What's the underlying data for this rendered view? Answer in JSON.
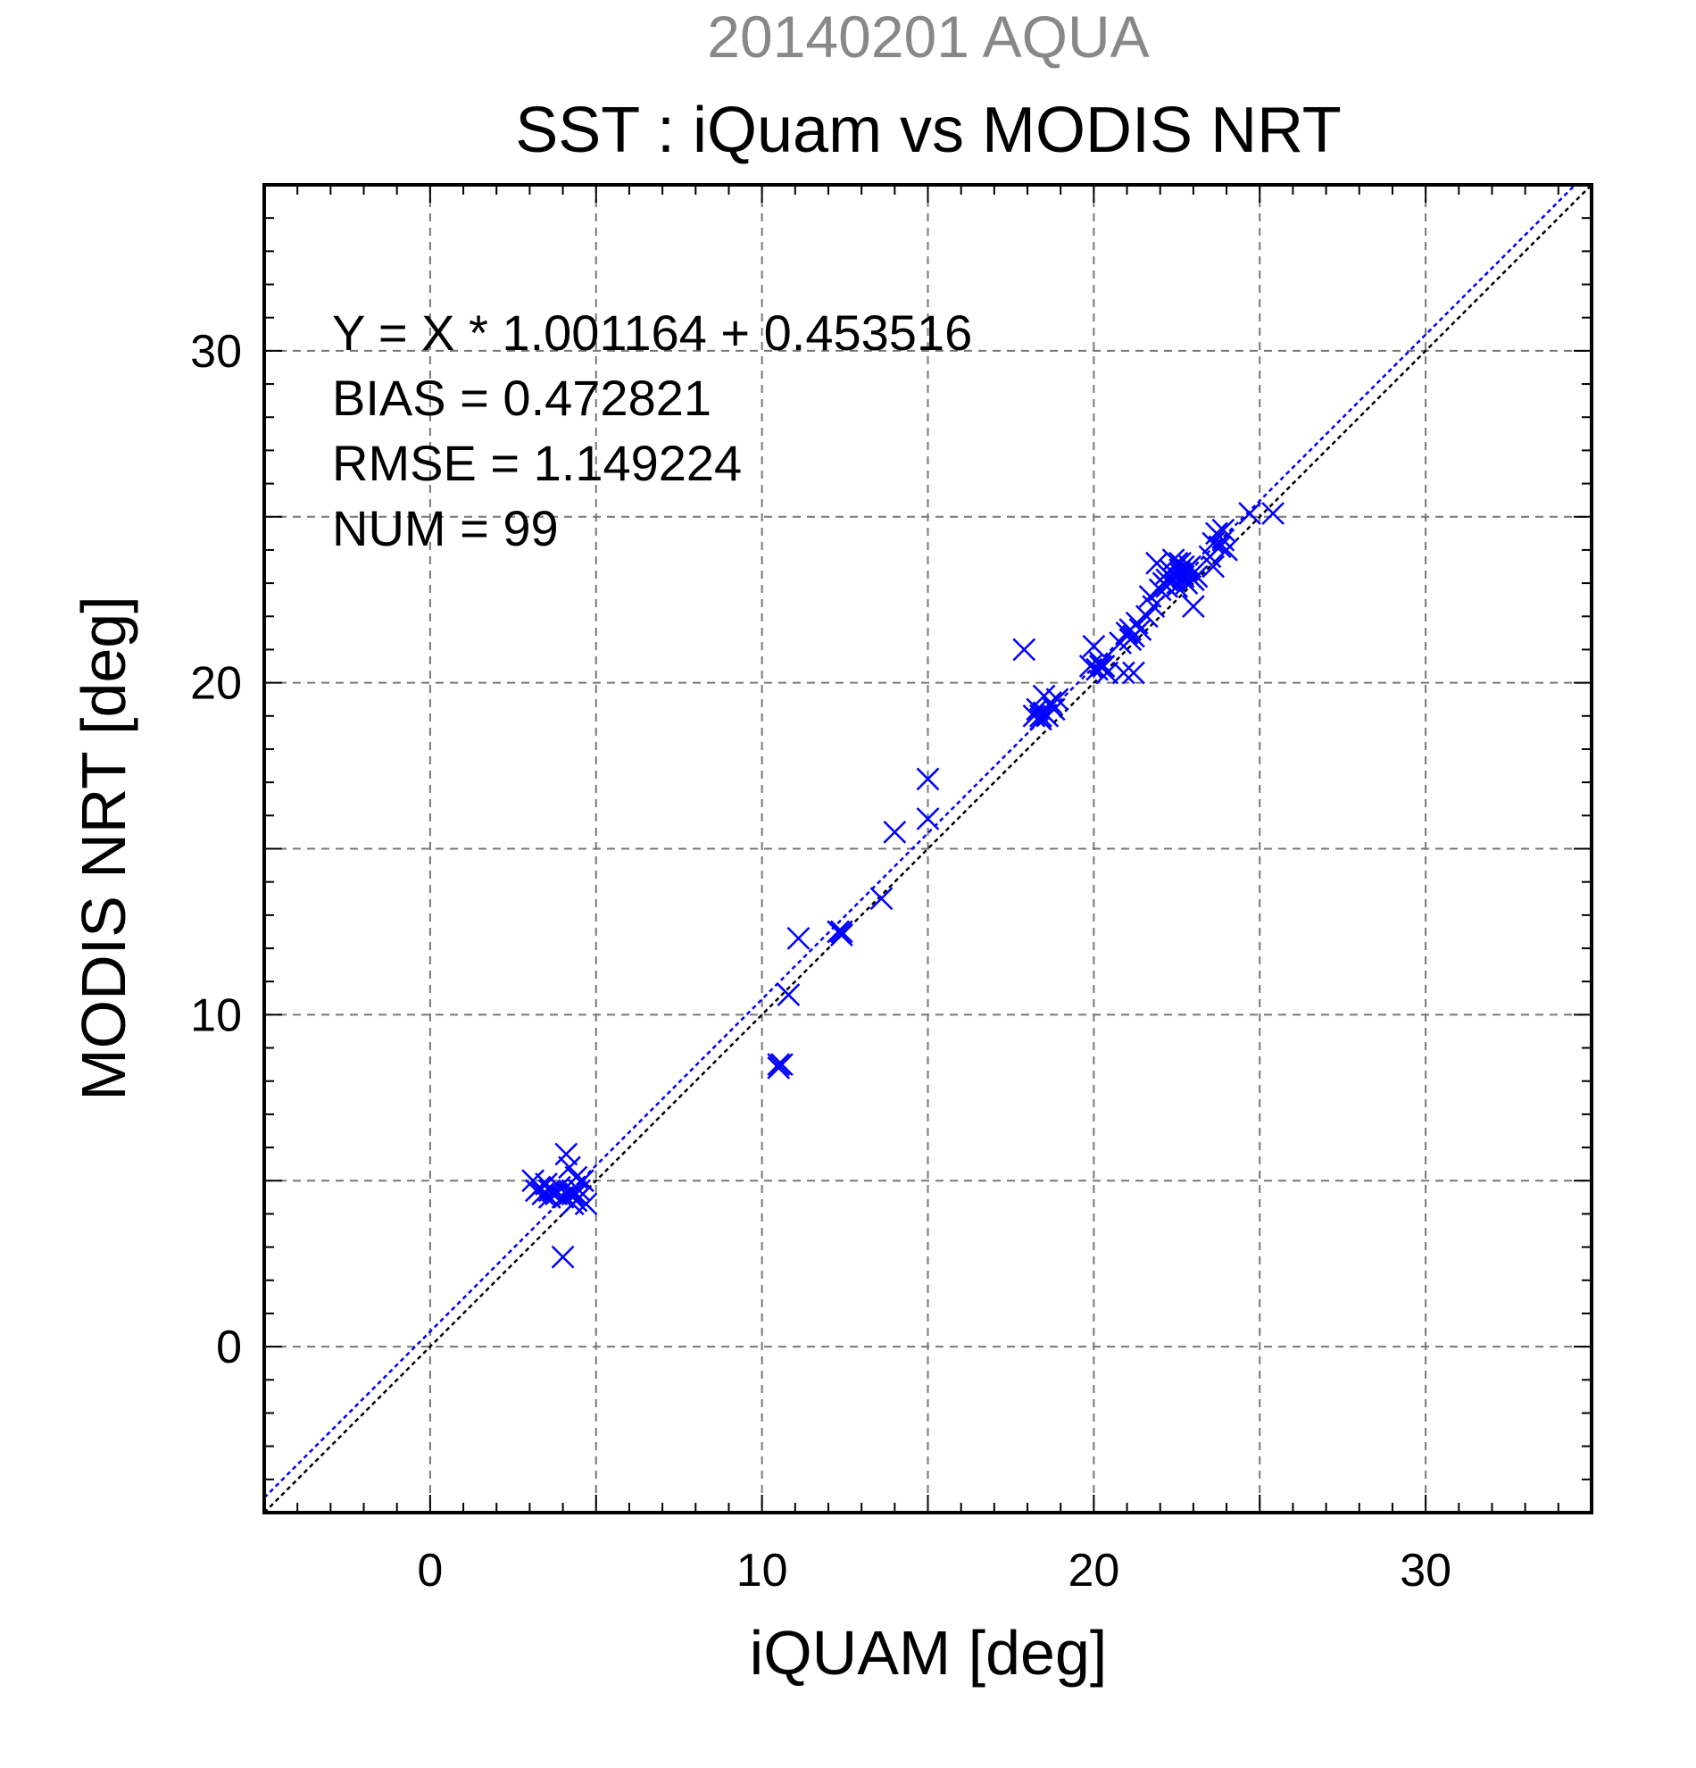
{
  "chart_data": {
    "type": "scatter",
    "title": "SST : iQuam vs MODIS NRT",
    "subtitle": "20140201 AQUA",
    "xlabel": "iQUAM [deg]",
    "ylabel": "MODIS NRT [deg]",
    "xlim": [
      -5,
      35
    ],
    "ylim": [
      -5,
      35
    ],
    "xticks": [
      "0",
      "10",
      "20",
      "30"
    ],
    "yticks": [
      "0",
      "10",
      "20",
      "30"
    ],
    "grid": true,
    "marker": "x",
    "colors": {
      "points": "#0000ff",
      "fit_line": "#0000ff",
      "identity_line": "#000000",
      "grid": "#777777",
      "subtitle": "#888888"
    },
    "stats": [
      "Y = X * 1.001164 + 0.453516",
      "BIAS = 0.472821",
      "RMSE = 1.149224",
      "NUM = 99"
    ],
    "fit": {
      "slope": 1.001164,
      "intercept": 0.453516
    },
    "points": [
      [
        3.1,
        5.0
      ],
      [
        3.2,
        4.7
      ],
      [
        3.3,
        4.8
      ],
      [
        3.4,
        4.6
      ],
      [
        3.5,
        4.9
      ],
      [
        3.6,
        4.5
      ],
      [
        3.7,
        4.7
      ],
      [
        3.8,
        4.6
      ],
      [
        3.9,
        4.8
      ],
      [
        4.0,
        4.5
      ],
      [
        4.1,
        5.8
      ],
      [
        4.2,
        5.4
      ],
      [
        4.3,
        4.6
      ],
      [
        4.4,
        4.4
      ],
      [
        4.5,
        4.7
      ],
      [
        4.6,
        5.0
      ],
      [
        4.7,
        4.3
      ],
      [
        4.3,
        4.3
      ],
      [
        4.0,
        2.7
      ],
      [
        4.4,
        5.1
      ],
      [
        10.5,
        8.5
      ],
      [
        10.6,
        8.5
      ],
      [
        10.8,
        10.6
      ],
      [
        11.1,
        12.3
      ],
      [
        12.3,
        12.5
      ],
      [
        12.4,
        12.4
      ],
      [
        13.6,
        13.5
      ],
      [
        14.0,
        15.5
      ],
      [
        15.0,
        17.1
      ],
      [
        15.0,
        15.9
      ],
      [
        17.9,
        21.0
      ],
      [
        18.2,
        19.0
      ],
      [
        18.3,
        19.2
      ],
      [
        18.4,
        18.9
      ],
      [
        18.5,
        19.6
      ],
      [
        18.6,
        19.0
      ],
      [
        18.7,
        19.4
      ],
      [
        18.8,
        19.2
      ],
      [
        18.9,
        19.5
      ],
      [
        18.5,
        19.1
      ],
      [
        19.9,
        20.5
      ],
      [
        20.0,
        21.1
      ],
      [
        20.1,
        20.4
      ],
      [
        20.2,
        20.6
      ],
      [
        20.3,
        20.5
      ],
      [
        20.4,
        20.3
      ],
      [
        20.8,
        21.2
      ],
      [
        20.9,
        20.3
      ],
      [
        21.0,
        21.5
      ],
      [
        21.1,
        21.6
      ],
      [
        21.2,
        21.4
      ],
      [
        21.3,
        21.8
      ],
      [
        21.4,
        21.6
      ],
      [
        21.2,
        20.3
      ],
      [
        21.6,
        22.0
      ],
      [
        21.7,
        22.6
      ],
      [
        21.8,
        22.3
      ],
      [
        21.9,
        23.6
      ],
      [
        22.0,
        22.8
      ],
      [
        22.1,
        23.0
      ],
      [
        22.2,
        22.9
      ],
      [
        22.3,
        23.4
      ],
      [
        22.4,
        23.1
      ],
      [
        22.5,
        23.6
      ],
      [
        22.6,
        23.3
      ],
      [
        22.7,
        23.5
      ],
      [
        22.8,
        23.0
      ],
      [
        22.9,
        23.2
      ],
      [
        23.0,
        22.3
      ],
      [
        22.4,
        23.7
      ],
      [
        22.6,
        23.4
      ],
      [
        22.8,
        23.4
      ],
      [
        23.0,
        23.1
      ],
      [
        22.2,
        23.3
      ],
      [
        22.5,
        22.9
      ],
      [
        22.7,
        23.2
      ],
      [
        22.9,
        23.5
      ],
      [
        23.1,
        23.2
      ],
      [
        23.5,
        23.8
      ],
      [
        23.6,
        24.2
      ],
      [
        23.7,
        24.5
      ],
      [
        23.8,
        24.1
      ],
      [
        23.9,
        24.3
      ],
      [
        24.0,
        24.0
      ],
      [
        23.6,
        23.5
      ],
      [
        24.7,
        25.1
      ],
      [
        25.4,
        25.1
      ],
      [
        21.1,
        21.3
      ],
      [
        20.2,
        20.5
      ],
      [
        22.2,
        23.1
      ],
      [
        18.4,
        19.0
      ],
      [
        3.6,
        4.7
      ],
      [
        4.2,
        4.6
      ],
      [
        4.5,
        4.5
      ],
      [
        12.4,
        12.5
      ],
      [
        10.5,
        8.4
      ],
      [
        22.4,
        23.3
      ],
      [
        22.6,
        23.6
      ],
      [
        23.9,
        24.6
      ]
    ]
  }
}
